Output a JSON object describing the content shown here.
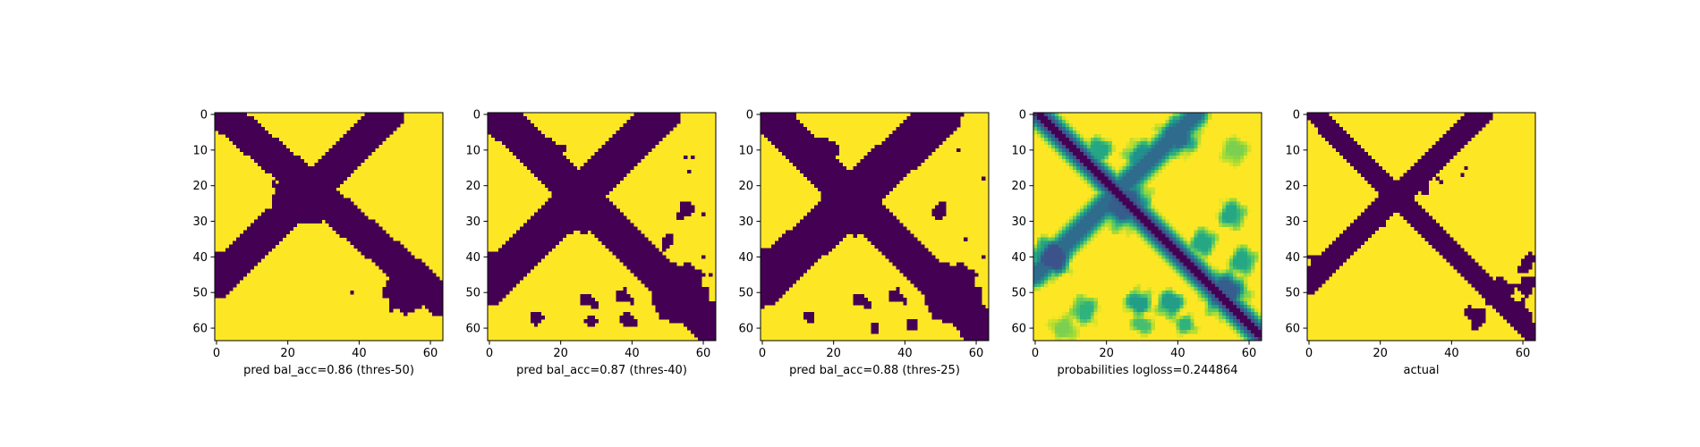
{
  "chart_data": [
    {
      "type": "heatmap",
      "title": "",
      "xlabel": "pred bal_acc=0.86 (thres-50)",
      "ylabel": "",
      "xlim": [
        0,
        63
      ],
      "ylim": [
        63,
        0
      ],
      "xticks": [
        0,
        20,
        40,
        60
      ],
      "yticks": [
        0,
        10,
        20,
        30,
        40,
        50,
        60
      ],
      "colormap": "viridis",
      "grid_size": [
        64,
        64
      ],
      "binary": true,
      "shapes": [
        {
          "kind": "band",
          "from": [
            2,
            0
          ],
          "to": [
            63,
            52
          ],
          "width": 4.5
        },
        {
          "kind": "band",
          "from": [
            48,
            0
          ],
          "to": [
            0,
            47
          ],
          "width": 4.5
        },
        {
          "kind": "blob",
          "center": [
            25,
            25
          ],
          "radius": 5.5
        },
        {
          "kind": "blob",
          "center": [
            53,
            50
          ],
          "radius": 6
        },
        {
          "kind": "blob",
          "center": [
            18,
            22
          ],
          "radius": 3
        },
        {
          "kind": "blob",
          "center": [
            31,
            17
          ],
          "radius": 3
        },
        {
          "kind": "blob",
          "center": [
            3,
            42
          ],
          "radius": 4
        }
      ],
      "specks": [
        [
          38,
          50
        ]
      ]
    },
    {
      "type": "heatmap",
      "title": "",
      "xlabel": "pred bal_acc=0.87 (thres-40)",
      "ylabel": "",
      "xlim": [
        0,
        63
      ],
      "ylim": [
        63,
        0
      ],
      "xticks": [
        0,
        20,
        40,
        60
      ],
      "yticks": [
        0,
        10,
        20,
        30,
        40,
        50,
        60
      ],
      "colormap": "viridis",
      "grid_size": [
        64,
        64
      ],
      "binary": true,
      "shapes": [
        {
          "kind": "band",
          "from": [
            2,
            0
          ],
          "to": [
            63,
            60
          ],
          "width": 5
        },
        {
          "kind": "band",
          "from": [
            48,
            0
          ],
          "to": [
            0,
            48
          ],
          "width": 5.5
        },
        {
          "kind": "blob",
          "center": [
            25,
            25
          ],
          "radius": 8
        },
        {
          "kind": "blob",
          "center": [
            53,
            50
          ],
          "radius": 8
        },
        {
          "kind": "blob",
          "center": [
            16,
            12
          ],
          "radius": 5
        },
        {
          "kind": "blob",
          "center": [
            37,
            12
          ],
          "radius": 4
        },
        {
          "kind": "blob",
          "center": [
            3,
            42
          ],
          "radius": 4.5
        },
        {
          "kind": "blob",
          "center": [
            55,
            27
          ],
          "radius": 2.5
        },
        {
          "kind": "blob",
          "center": [
            50,
            36
          ],
          "radius": 2
        },
        {
          "kind": "blob",
          "center": [
            28,
            52
          ],
          "radius": 2
        },
        {
          "kind": "blob",
          "center": [
            38,
            51
          ],
          "radius": 2
        },
        {
          "kind": "blob",
          "center": [
            13,
            57
          ],
          "radius": 1.8
        },
        {
          "kind": "blob",
          "center": [
            29,
            58
          ],
          "radius": 1.5
        },
        {
          "kind": "blob",
          "center": [
            39,
            58
          ],
          "radius": 2
        }
      ],
      "specks": [
        [
          57,
          12
        ],
        [
          56,
          16
        ],
        [
          55,
          12
        ],
        [
          60,
          28
        ],
        [
          62,
          45
        ],
        [
          60,
          40
        ],
        [
          4,
          51
        ],
        [
          3,
          49
        ],
        [
          60,
          57
        ]
      ]
    },
    {
      "type": "heatmap",
      "title": "",
      "xlabel": "pred bal_acc=0.88 (thres-25)",
      "ylabel": "",
      "xlim": [
        0,
        63
      ],
      "ylim": [
        63,
        0
      ],
      "xticks": [
        0,
        20,
        40,
        60
      ],
      "yticks": [
        0,
        10,
        20,
        30,
        40,
        50,
        60
      ],
      "colormap": "viridis",
      "grid_size": [
        64,
        64
      ],
      "binary": true,
      "shapes": [
        {
          "kind": "band",
          "from": [
            2,
            0
          ],
          "to": [
            63,
            62
          ],
          "width": 5
        },
        {
          "kind": "band",
          "from": [
            50,
            0
          ],
          "to": [
            0,
            48
          ],
          "width": 6
        },
        {
          "kind": "blob",
          "center": [
            25,
            25
          ],
          "radius": 8.5
        },
        {
          "kind": "blob",
          "center": [
            53,
            50
          ],
          "radius": 8
        },
        {
          "kind": "blob",
          "center": [
            16,
            12
          ],
          "radius": 5.5
        },
        {
          "kind": "blob",
          "center": [
            38,
            12
          ],
          "radius": 4.5
        },
        {
          "kind": "blob",
          "center": [
            3,
            42
          ],
          "radius": 5
        },
        {
          "kind": "blob",
          "center": [
            50,
            27
          ],
          "radius": 2
        },
        {
          "kind": "blob",
          "center": [
            28,
            52
          ],
          "radius": 2
        },
        {
          "kind": "blob",
          "center": [
            38,
            51
          ],
          "radius": 2
        },
        {
          "kind": "blob",
          "center": [
            13,
            56
          ],
          "radius": 1.5
        },
        {
          "kind": "blob",
          "center": [
            31,
            60
          ],
          "radius": 1
        },
        {
          "kind": "blob",
          "center": [
            42,
            59
          ],
          "radius": 1.8
        }
      ],
      "specks": [
        [
          55,
          10
        ],
        [
          62,
          18
        ],
        [
          57,
          35
        ],
        [
          62,
          40
        ],
        [
          60,
          57
        ]
      ]
    },
    {
      "type": "heatmap",
      "title": "",
      "xlabel": "probabilities logloss=0.244864",
      "ylabel": "",
      "xlim": [
        0,
        63
      ],
      "ylim": [
        63,
        0
      ],
      "xticks": [
        0,
        20,
        40,
        60
      ],
      "yticks": [
        0,
        10,
        20,
        30,
        40,
        50,
        60
      ],
      "colormap": "viridis",
      "grid_size": [
        64,
        64
      ],
      "binary": false,
      "value_range": [
        0,
        1
      ],
      "shapes": [
        {
          "kind": "band",
          "from": [
            1,
            0
          ],
          "to": [
            63,
            62
          ],
          "width": 2.2,
          "value": 0.0
        },
        {
          "kind": "band",
          "from": [
            1,
            0
          ],
          "to": [
            63,
            62
          ],
          "width": 4.5,
          "value": 0.25
        },
        {
          "kind": "band",
          "from": [
            45,
            0
          ],
          "to": [
            0,
            45
          ],
          "width": 4.5,
          "value": 0.35
        },
        {
          "kind": "blob",
          "center": [
            25,
            25
          ],
          "radius": 7,
          "value": 0.3
        },
        {
          "kind": "blob",
          "center": [
            53,
            50
          ],
          "radius": 6,
          "value": 0.3
        },
        {
          "kind": "blob",
          "center": [
            5,
            40
          ],
          "radius": 5,
          "value": 0.25
        },
        {
          "kind": "blob",
          "center": [
            40,
            6
          ],
          "radius": 5,
          "value": 0.35
        },
        {
          "kind": "blob",
          "center": [
            30,
            12
          ],
          "radius": 4,
          "value": 0.5
        },
        {
          "kind": "blob",
          "center": [
            18,
            10
          ],
          "radius": 3,
          "value": 0.6
        },
        {
          "kind": "blob",
          "center": [
            55,
            28
          ],
          "radius": 3,
          "value": 0.6
        },
        {
          "kind": "blob",
          "center": [
            47,
            36
          ],
          "radius": 3,
          "value": 0.6
        },
        {
          "kind": "blob",
          "center": [
            58,
            41
          ],
          "radius": 3,
          "value": 0.6
        },
        {
          "kind": "blob",
          "center": [
            14,
            55
          ],
          "radius": 3,
          "value": 0.65
        },
        {
          "kind": "blob",
          "center": [
            29,
            53
          ],
          "radius": 3,
          "value": 0.55
        },
        {
          "kind": "blob",
          "center": [
            38,
            53
          ],
          "radius": 3,
          "value": 0.55
        },
        {
          "kind": "blob",
          "center": [
            30,
            59
          ],
          "radius": 2,
          "value": 0.7
        },
        {
          "kind": "blob",
          "center": [
            42,
            59
          ],
          "radius": 2,
          "value": 0.65
        },
        {
          "kind": "blob",
          "center": [
            8,
            60
          ],
          "radius": 3,
          "value": 0.8
        },
        {
          "kind": "blob",
          "center": [
            56,
            10
          ],
          "radius": 3,
          "value": 0.8
        }
      ],
      "specks": []
    },
    {
      "type": "heatmap",
      "title": "",
      "xlabel": "actual",
      "ylabel": "",
      "xlim": [
        0,
        63
      ],
      "ylim": [
        63,
        0
      ],
      "xticks": [
        0,
        20,
        40,
        60
      ],
      "yticks": [
        0,
        10,
        20,
        30,
        40,
        50,
        60
      ],
      "colormap": "viridis",
      "grid_size": [
        64,
        64
      ],
      "binary": true,
      "shapes": [
        {
          "kind": "band",
          "from": [
            2,
            0
          ],
          "to": [
            63,
            62
          ],
          "width": 2.8
        },
        {
          "kind": "band",
          "from": [
            48,
            0
          ],
          "to": [
            0,
            47
          ],
          "width": 3.2
        },
        {
          "kind": "blob",
          "center": [
            23,
            22
          ],
          "radius": 3
        },
        {
          "kind": "blob",
          "center": [
            30,
            20
          ],
          "radius": 3
        },
        {
          "kind": "blob",
          "center": [
            18,
            16
          ],
          "radius": 2
        },
        {
          "kind": "blob",
          "center": [
            28,
            27
          ],
          "radius": 2
        },
        {
          "kind": "blob",
          "center": [
            20,
            30
          ],
          "radius": 2
        },
        {
          "kind": "blob",
          "center": [
            3,
            42
          ],
          "radius": 3
        },
        {
          "kind": "blob",
          "center": [
            53,
            50
          ],
          "radius": 4
        },
        {
          "kind": "blob",
          "center": [
            47,
            57
          ],
          "radius": 3
        },
        {
          "kind": "blob",
          "center": [
            59,
            55
          ],
          "radius": 3
        },
        {
          "kind": "blob",
          "center": [
            61,
            42
          ],
          "radius": 2.5
        },
        {
          "kind": "blob",
          "center": [
            61,
            48
          ],
          "radius": 2.5
        }
      ],
      "specks": [
        [
          36,
          18
        ],
        [
          37,
          19
        ],
        [
          43,
          17
        ],
        [
          44,
          15
        ]
      ]
    }
  ]
}
